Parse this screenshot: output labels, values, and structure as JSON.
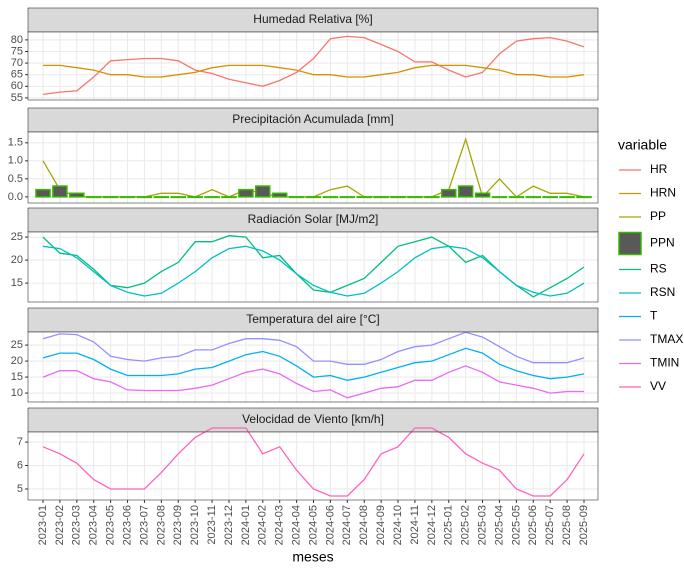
{
  "chart_data": [
    {
      "type": "line",
      "title": "Humedad Relativa [%]",
      "ylim": [
        54.1,
        83.4
      ],
      "yticks": [
        55,
        60,
        65,
        70,
        75,
        80
      ],
      "grid": true,
      "series": [
        {
          "name": "HR",
          "color": "#F8766D",
          "values": [
            56.5,
            57.5,
            58,
            64,
            71,
            71.5,
            72,
            72,
            71,
            67,
            65.5,
            63,
            61.5,
            60,
            62.5,
            66,
            72,
            80.5,
            81.5,
            81,
            78,
            75,
            70.5,
            70.5,
            67,
            64,
            66,
            74,
            79.5,
            80.5,
            81,
            79.5,
            77
          ]
        },
        {
          "name": "HRN",
          "color": "#D89000",
          "values": [
            69,
            69,
            68,
            67,
            65,
            65,
            64,
            64,
            65,
            66,
            68,
            69,
            69,
            69,
            68,
            67,
            65,
            65,
            64,
            64,
            65,
            66,
            68,
            69,
            69,
            69,
            68,
            67,
            65,
            65,
            64,
            64,
            65
          ]
        }
      ]
    },
    {
      "type": "line",
      "title": "Precipitación Acumulada [mm]",
      "ylim": [
        -0.17,
        1.8
      ],
      "yticks": [
        {
          "value": 0,
          "label": "0.0"
        },
        0.5,
        {
          "value": 1,
          "label": "1.0"
        },
        1.5
      ],
      "grid": true,
      "series": [
        {
          "name": "PP",
          "color": "#A3A500",
          "values": [
            1.0,
            0.2,
            0,
            0,
            0,
            0,
            0,
            0.1,
            0.1,
            0,
            0.2,
            0,
            0.2,
            0.1,
            0,
            0,
            0,
            0.2,
            0.3,
            0,
            0,
            0,
            0,
            0,
            0.2,
            1.6,
            0,
            0.5,
            0,
            0.3,
            0.1,
            0.1,
            0
          ]
        },
        {
          "name": "PPN",
          "type": "bar",
          "color": "#39B600",
          "fill": "#595959",
          "values": [
            0.2,
            0.3,
            0.1,
            0,
            0,
            0,
            0,
            0,
            0,
            0,
            0,
            0,
            0.2,
            0.3,
            0.1,
            0,
            0,
            0,
            0,
            0,
            0,
            0,
            0,
            0,
            0.2,
            0.3,
            0.1,
            0,
            0,
            0,
            0,
            0,
            0
          ]
        }
      ]
    },
    {
      "type": "line",
      "title": "Radiación Solar [MJ/m2]",
      "ylim": [
        10.9,
        26.1
      ],
      "yticks": [
        15,
        20,
        25
      ],
      "grid": true,
      "series": [
        {
          "name": "RS",
          "color": "#00BF7D",
          "values": [
            25,
            21.5,
            21,
            18,
            14.5,
            14,
            15,
            17.5,
            19.5,
            24,
            24,
            25.3,
            25,
            20.5,
            21,
            17,
            13.5,
            13,
            14.5,
            16,
            19.5,
            23,
            24,
            25,
            23,
            19.5,
            21,
            17.5,
            14.5,
            12,
            14,
            16,
            18.5
          ]
        },
        {
          "name": "RSN",
          "color": "#00BFC4",
          "values": [
            23,
            22.5,
            20.5,
            17.5,
            14.5,
            13,
            12.2,
            12.8,
            15,
            17.5,
            20.5,
            22.5,
            23,
            22,
            20,
            17,
            14.5,
            13,
            12.2,
            12.8,
            15,
            17.5,
            20.5,
            22.5,
            23,
            22.5,
            20.5,
            17.5,
            14.5,
            13,
            12.2,
            12.8,
            15
          ]
        }
      ]
    },
    {
      "type": "line",
      "title": "Temperatura del aire [°C]",
      "ylim": [
        7.2,
        29.1
      ],
      "yticks": [
        10,
        15,
        20,
        25
      ],
      "grid": true,
      "series": [
        {
          "name": "T",
          "color": "#00B0F6",
          "values": [
            21,
            22.5,
            22.5,
            20.5,
            17.5,
            15.5,
            15.5,
            15.5,
            16,
            17.5,
            18,
            20,
            22,
            23,
            21.5,
            18.5,
            15,
            15.5,
            14,
            15,
            16.5,
            18,
            19.5,
            20,
            22,
            24,
            22.5,
            19,
            17,
            15.5,
            14.5,
            15,
            16
          ]
        },
        {
          "name": "TMAX",
          "color": "#9590FF",
          "values": [
            27,
            28.5,
            28.3,
            26,
            21.5,
            20.5,
            20,
            21,
            21.5,
            23.5,
            23.5,
            25.5,
            27,
            27,
            26.5,
            24.5,
            20,
            20,
            19,
            19,
            20.5,
            23,
            24.5,
            25,
            27,
            29,
            27.5,
            24.5,
            21.5,
            19.5,
            19.5,
            19.5,
            21
          ]
        },
        {
          "name": "TMIN",
          "color": "#E76BF3",
          "values": [
            15,
            17,
            17,
            14.5,
            13.5,
            11,
            10.8,
            10.8,
            10.8,
            11.5,
            12.5,
            14.5,
            16.5,
            17.5,
            16,
            13,
            10.5,
            11,
            8.5,
            10,
            11.5,
            12,
            14,
            14,
            16.5,
            18.5,
            16.5,
            13.5,
            12.5,
            11.5,
            10,
            10.5,
            10.5
          ]
        }
      ]
    },
    {
      "type": "line",
      "title": "Velocidad de Viento [km/h]",
      "ylim": [
        4.53,
        7.43
      ],
      "yticks": [
        5,
        6,
        7
      ],
      "grid": true,
      "xlabel": "meses",
      "categories": [
        "2023-01",
        "2023-02",
        "2023-03",
        "2023-04",
        "2023-05",
        "2023-06",
        "2023-07",
        "2023-08",
        "2023-09",
        "2023-10",
        "2023-11",
        "2023-12",
        "2024-01",
        "2024-02",
        "2024-03",
        "2024-04",
        "2024-05",
        "2024-06",
        "2024-07",
        "2024-08",
        "2024-09",
        "2024-10",
        "2024-11",
        "2024-12",
        "2025-01",
        "2025-02",
        "2025-03",
        "2025-04",
        "2025-05",
        "2025-06",
        "2025-07",
        "2025-08",
        "2025-09"
      ],
      "series": [
        {
          "name": "VV",
          "color": "#FF62BC",
          "values": [
            6.8,
            6.5,
            6.1,
            5.4,
            5,
            5,
            5,
            5.7,
            6.5,
            7.2,
            7.6,
            7.6,
            7.6,
            6.5,
            6.8,
            5.8,
            5,
            4.7,
            4.7,
            5.4,
            6.5,
            6.8,
            7.6,
            7.6,
            7.2,
            6.5,
            6.1,
            5.8,
            5,
            4.7,
            4.7,
            5.4,
            6.5
          ]
        }
      ]
    }
  ],
  "legend": {
    "title": "variable"
  }
}
